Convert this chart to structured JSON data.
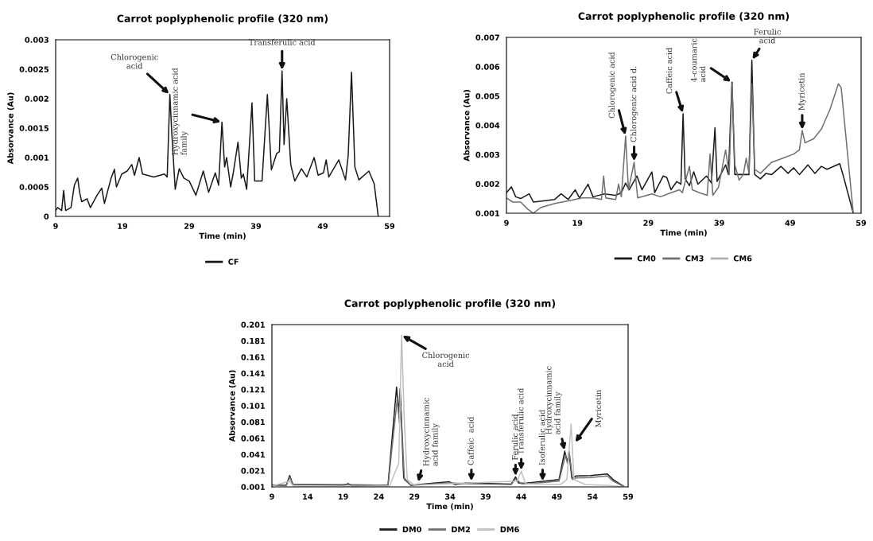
{
  "chart_data": [
    {
      "type": "line",
      "title": "Carrot poplyphenolic profile (320 nm)",
      "xlabel": "Time (min)",
      "ylabel": "Absorvance (Au)",
      "xlim": [
        9,
        59
      ],
      "xticks": [
        9,
        19,
        29,
        39,
        49,
        59
      ],
      "ylim": [
        0,
        0.003
      ],
      "yticks": [
        0,
        0.0005,
        0.001,
        0.0015,
        0.002,
        0.0025,
        0.003
      ],
      "grid": false,
      "legend": "bottom",
      "series": [
        {
          "name": "CF",
          "color": "#1a1a1a",
          "x": [
            9,
            9.3,
            9.9,
            10.2,
            10.5,
            11.3,
            11.8,
            12.3,
            12.6,
            12.9,
            13.7,
            14.2,
            15.2,
            15.9,
            16.3,
            17.3,
            17.8,
            18.1,
            18.9,
            19.7,
            20.4,
            20.8,
            21.5,
            22.0,
            23.7,
            25.3,
            25.7,
            26.1,
            26.4,
            26.9,
            27.5,
            28.2,
            29,
            30,
            31.1,
            31.9,
            32.9,
            33.4,
            33.9,
            34.3,
            34.6,
            35.2,
            35.6,
            36.3,
            36.8,
            37.1,
            37.6,
            38.4,
            38.8,
            39.9,
            40.7,
            41.3,
            42.1,
            42.5,
            42.9,
            43.2,
            43.6,
            44.2,
            44.8,
            45.8,
            46.6,
            47.7,
            48.3,
            49.1,
            49.5,
            49.9,
            51.4,
            52.4,
            52.8,
            53.3,
            53.8,
            54.4,
            55.9,
            56.7,
            57.3
          ],
          "values": [
            0.0001,
            0.00015,
            0.0001,
            0.00044,
            0.0001,
            0.00015,
            0.00053,
            0.00065,
            0.0004,
            0.00025,
            0.0003,
            0.00015,
            0.00036,
            0.00048,
            0.00022,
            0.00065,
            0.0008,
            0.0005,
            0.00072,
            0.00077,
            0.00088,
            0.0007,
            0.001,
            0.00072,
            0.00067,
            0.00072,
            0.00067,
            0.00207,
            0.0014,
            0.00046,
            0.00081,
            0.00065,
            0.0006,
            0.00036,
            0.00077,
            0.00041,
            0.00074,
            0.00053,
            0.0016,
            0.00084,
            0.001,
            0.0005,
            0.00074,
            0.00126,
            0.00065,
            0.00072,
            0.00046,
            0.00193,
            0.0006,
            0.0006,
            0.00207,
            0.00079,
            0.00107,
            0.0011,
            0.00247,
            0.00122,
            0.002,
            0.00088,
            0.0006,
            0.00081,
            0.00067,
            0.001,
            0.0007,
            0.00074,
            0.00096,
            0.00067,
            0.00096,
            0.00062,
            0.00103,
            0.00245,
            0.00084,
            0.00062,
            0.00077,
            0.00055,
            0
          ]
        }
      ],
      "annotations": [
        {
          "text": "Chlorogenic\nacid",
          "x": 26.1,
          "y": 0.00207
        },
        {
          "text": "Hydroxycinnamic acid\nfamily",
          "x": 33.9,
          "y": 0.0016
        },
        {
          "text": "Transferulic acid",
          "x": 42.9,
          "y": 0.00247
        }
      ]
    },
    {
      "type": "line",
      "title": "Carrot poplyphenolic profile (320 nm)",
      "xlabel": "Time (min)",
      "ylabel": "Absorvance (Au)",
      "xlim": [
        9,
        59
      ],
      "xticks": [
        9,
        19,
        29,
        39,
        49,
        59
      ],
      "ylim": [
        0.001,
        0.007
      ],
      "yticks": [
        0.001,
        0.002,
        0.003,
        0.004,
        0.005,
        0.006,
        0.007
      ],
      "grid": false,
      "legend": "bottom",
      "series": [
        {
          "name": "CM0",
          "color": "#1a1a1a",
          "x": [
            9,
            9.7,
            10.3,
            11,
            12.2,
            12.8,
            14.2,
            15.8,
            16.7,
            17.7,
            18.7,
            19.3,
            20.5,
            21.2,
            22.8,
            24.4,
            25.2,
            25.8,
            26.3,
            27.4,
            28.1,
            29.5,
            29.9,
            31.1,
            31.6,
            32.2,
            33,
            33.6,
            33.9,
            34.2,
            34.8,
            35.4,
            36,
            37.2,
            37.9,
            38.4,
            38.7,
            39.1,
            39.9,
            40.3,
            40.8,
            41.2,
            43.2,
            43.6,
            44,
            44.8,
            45.6,
            46.4,
            47.7,
            48.7,
            49.5,
            50.3,
            51.5,
            52.5,
            53.4,
            54.2,
            56,
            56.5,
            57.9
          ],
          "values": [
            0.0017,
            0.0019,
            0.00156,
            0.0015,
            0.00166,
            0.00138,
            0.00142,
            0.00147,
            0.00166,
            0.00147,
            0.0018,
            0.00152,
            0.00199,
            0.00156,
            0.00166,
            0.00161,
            0.0017,
            0.00203,
            0.0018,
            0.00227,
            0.0018,
            0.00241,
            0.0017,
            0.00227,
            0.00222,
            0.0018,
            0.00208,
            0.00199,
            0.00439,
            0.00217,
            0.00194,
            0.00241,
            0.00199,
            0.00227,
            0.00203,
            0.00392,
            0.00208,
            0.00227,
            0.00265,
            0.00232,
            0.00547,
            0.00232,
            0.00232,
            0.00622,
            0.00232,
            0.00217,
            0.00236,
            0.00232,
            0.0026,
            0.00236,
            0.00255,
            0.00232,
            0.00265,
            0.00236,
            0.0026,
            0.0025,
            0.00269,
            0.00227,
            0.001
          ]
        },
        {
          "name": "CM3",
          "color": "#707070",
          "x": [
            9,
            9.9,
            11,
            12,
            12.8,
            13.8,
            15.8,
            17.7,
            19.7,
            21.2,
            22.4,
            22.7,
            23,
            24.4,
            24.8,
            25.2,
            25.8,
            26.2,
            27,
            27.5,
            29.5,
            30.7,
            32.2,
            33.4,
            33.8,
            34.8,
            35.2,
            36.2,
            37.3,
            37.7,
            38.1,
            38.9,
            39.9,
            40.4,
            40.8,
            41.2,
            41.8,
            42.4,
            42.8,
            43.2,
            43.6,
            44,
            44.8,
            46.4,
            48,
            49.5,
            50.3,
            50.7,
            51.1,
            52.3,
            53.4,
            54.6,
            55.8,
            56.2,
            57.9
          ],
          "values": [
            0.00152,
            0.00138,
            0.00138,
            0.00114,
            0.001,
            0.00119,
            0.00133,
            0.00142,
            0.00152,
            0.00152,
            0.00147,
            0.00227,
            0.00152,
            0.00147,
            0.00199,
            0.00156,
            0.00363,
            0.0018,
            0.00274,
            0.00152,
            0.00166,
            0.00156,
            0.0017,
            0.0018,
            0.0017,
            0.0026,
            0.0018,
            0.0017,
            0.00161,
            0.00302,
            0.00161,
            0.00189,
            0.00316,
            0.00232,
            0.00542,
            0.00265,
            0.00213,
            0.00232,
            0.00288,
            0.00236,
            0.00542,
            0.0025,
            0.00236,
            0.00274,
            0.00288,
            0.00302,
            0.00316,
            0.00382,
            0.0034,
            0.00354,
            0.00387,
            0.00453,
            0.00542,
            0.00528,
            0.001
          ]
        },
        {
          "name": "CM6",
          "color": "#b0b0b0"
        }
      ],
      "annotations": [
        {
          "text": "Chlorogenic acid",
          "x": 25.8,
          "y": 0.00363
        },
        {
          "text": "Chlorogenic acid d.",
          "x": 27,
          "y": 0.00274
        },
        {
          "text": "Caffeic acid",
          "x": 33.9,
          "y": 0.00439
        },
        {
          "text": "4-coumaric\nacid",
          "x": 40.8,
          "y": 0.00547
        },
        {
          "text": "Ferulic\nacid",
          "x": 43.6,
          "y": 0.00622
        },
        {
          "text": "Myricetin",
          "x": 50.7,
          "y": 0.00382
        }
      ]
    },
    {
      "type": "line",
      "title": "Carrot poplyphenolic profile (320 nm)",
      "xlabel": "Time (min)",
      "ylabel": "Absorvance (Au)",
      "xlim": [
        9,
        59
      ],
      "xticks": [
        9,
        14,
        19,
        24,
        29,
        34,
        39,
        44,
        49,
        54,
        59
      ],
      "ylim": [
        0.001,
        0.201
      ],
      "yticks": [
        0.001,
        0.021,
        0.041,
        0.061,
        0.081,
        0.101,
        0.121,
        0.141,
        0.161,
        0.181,
        0.201
      ],
      "grid": false,
      "legend": "bottom",
      "series": [
        {
          "name": "DM0",
          "color": "#1a1a1a",
          "x": [
            9,
            11,
            11.5,
            11.9,
            19,
            19.7,
            20.3,
            25.3,
            26.5,
            26.8,
            27.0,
            27.5,
            28.5,
            30.8,
            33.9,
            34.7,
            36.3,
            42.6,
            43.2,
            43.6,
            44.4,
            45,
            49.3,
            50.1,
            50.5,
            50.7,
            51.1,
            51.7,
            53.7,
            56.1,
            56.9,
            58.4
          ],
          "values": [
            0.0035,
            0.003,
            0.015,
            0.0045,
            0.003,
            0.005,
            0.002,
            0.0035,
            0.124,
            0.092,
            0.122,
            0.012,
            0.003,
            0.005,
            0.0073,
            0.004,
            0.006,
            0.0045,
            0.0133,
            0.006,
            0.0055,
            0.006,
            0.01,
            0.045,
            0.031,
            0.045,
            0.0118,
            0.0145,
            0.015,
            0.017,
            0.01,
            0.0017
          ]
        },
        {
          "name": "DM2",
          "color": "#707070",
          "x": [
            9,
            11,
            11.5,
            12,
            19.7,
            25.3,
            26.6,
            26.9,
            27.1,
            27.6,
            28.5,
            33.9,
            36.3,
            42.6,
            43.2,
            44,
            45,
            49.3,
            50.2,
            50.5,
            50.8,
            51.2,
            51.7,
            53.7,
            56.1,
            56.9,
            58.4
          ],
          "values": [
            0.003,
            0.0025,
            0.013,
            0.004,
            0.004,
            0.003,
            0.11,
            0.08,
            0.1,
            0.01,
            0.003,
            0.006,
            0.005,
            0.004,
            0.011,
            0.005,
            0.005,
            0.008,
            0.04,
            0.03,
            0.04,
            0.01,
            0.012,
            0.0125,
            0.0145,
            0.008,
            0.0015
          ]
        },
        {
          "name": "DM6",
          "color": "#c0c0c0",
          "x": [
            9,
            11.5,
            12,
            25.5,
            26.8,
            27.2,
            27.6,
            28,
            29,
            34,
            43.4,
            44,
            44.6,
            49.5,
            50.4,
            51,
            51.4,
            53,
            56,
            58.4
          ],
          "values": [
            0.002,
            0.008,
            0.002,
            0.002,
            0.03,
            0.188,
            0.08,
            0.01,
            0.003,
            0.005,
            0.008,
            0.0204,
            0.005,
            0.004,
            0.01,
            0.0785,
            0.01,
            0.004,
            0.003,
            0.001
          ]
        }
      ],
      "annotations": [
        {
          "text": "Chlorogenic\nacid",
          "x": 27.2,
          "y": 0.188
        },
        {
          "text": "Hydroxycinnamic\nacid family",
          "x": 29.5,
          "y": 0.006
        },
        {
          "text": "Caffeic  acid",
          "x": 37,
          "y": 0.007
        },
        {
          "text": "Ferulic acid",
          "x": 43.2,
          "y": 0.0133
        },
        {
          "text": "Transferulic acid",
          "x": 44,
          "y": 0.0204
        },
        {
          "text": "Isoferulic acid",
          "x": 47,
          "y": 0.007
        },
        {
          "text": "Hydroxycinnamic\nacid family",
          "x": 50.1,
          "y": 0.045
        },
        {
          "text": "Myricetin",
          "x": 51.5,
          "y": 0.055
        }
      ]
    }
  ]
}
